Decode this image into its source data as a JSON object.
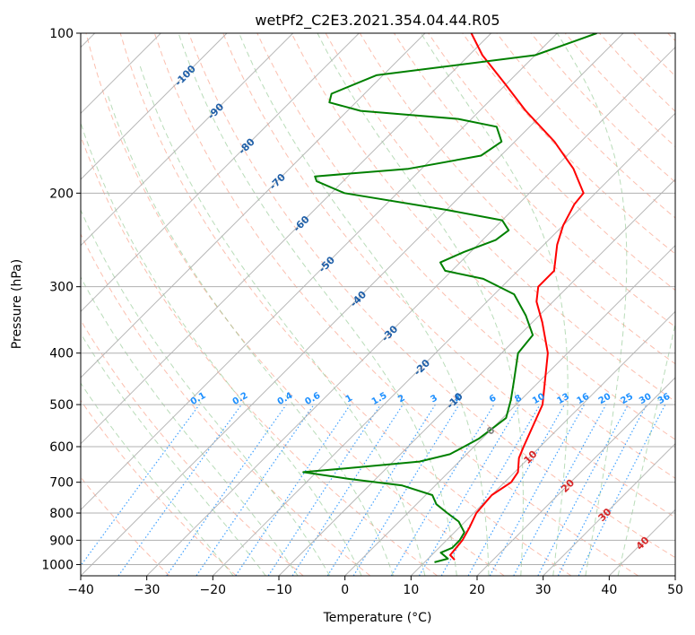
{
  "chart_data": {
    "type": "line",
    "chart_kind": "skew-T log-P diagram",
    "title": "wetPf2_C2E3.2021.354.04.44.R05",
    "xlabel": "Temperature (°C)",
    "ylabel": "Pressure (hPa)",
    "xlim": [
      -40,
      50
    ],
    "ylim": [
      1050,
      100
    ],
    "y_scale": "log",
    "x_ticks": [
      -40,
      -30,
      -20,
      -10,
      0,
      10,
      20,
      30,
      40,
      50
    ],
    "x_tick_labels": [
      "−40",
      "−30",
      "−20",
      "−10",
      "0",
      "10",
      "20",
      "30",
      "40",
      "50"
    ],
    "y_ticks": [
      100,
      200,
      300,
      400,
      500,
      600,
      700,
      800,
      900,
      1000
    ],
    "y_tick_labels": [
      "100",
      "200",
      "300",
      "400",
      "500",
      "600",
      "700",
      "800",
      "900",
      "1000"
    ],
    "grid": true,
    "isotherms_skewed": true,
    "isotherm_labels": [
      {
        "value": -100,
        "label": "-100"
      },
      {
        "value": -90,
        "label": "-90"
      },
      {
        "value": -80,
        "label": "-80"
      },
      {
        "value": -70,
        "label": "-70"
      },
      {
        "value": -60,
        "label": "-60"
      },
      {
        "value": -50,
        "label": "-50"
      },
      {
        "value": -40,
        "label": "-40"
      },
      {
        "value": -30,
        "label": "-30"
      },
      {
        "value": -20,
        "label": "-20"
      },
      {
        "value": -10,
        "label": "-10"
      },
      {
        "value": 0,
        "label": "0"
      },
      {
        "value": 10,
        "label": "10"
      },
      {
        "value": 20,
        "label": "20"
      },
      {
        "value": 30,
        "label": "30"
      },
      {
        "value": 40,
        "label": "40"
      }
    ],
    "mixing_ratio_labels": [
      "0.1",
      "0.2",
      "0.4",
      "0.6",
      "1",
      "1.5",
      "2",
      "3",
      "4",
      "6",
      "8",
      "10",
      "13",
      "16",
      "20",
      "25",
      "30",
      "36"
    ],
    "mixing_ratio_values": [
      0.1,
      0.2,
      0.4,
      0.6,
      1,
      1.5,
      2,
      3,
      4,
      6,
      8,
      10,
      13,
      16,
      20,
      25,
      30,
      36
    ],
    "colors": {
      "temperature": "#ff0000",
      "dewpoint": "#008000",
      "isotherm_neg_label": "#1f5fa8",
      "isotherm_pos_label": "#d62728",
      "isotherm_zero_label": "#808080",
      "mixing_ratio": "#1e90ff",
      "dry_adiabat": "#fa8060",
      "moist_adiabat": "#7fbf7f",
      "grid": "#b0b0b0"
    },
    "series": [
      {
        "name": "Temperature",
        "points": [
          {
            "p": 980,
            "t": 14.2
          },
          {
            "p": 960,
            "t": 12.8
          },
          {
            "p": 900,
            "t": 12.4
          },
          {
            "p": 850,
            "t": 11.5
          },
          {
            "p": 800,
            "t": 10.4
          },
          {
            "p": 740,
            "t": 10.0
          },
          {
            "p": 700,
            "t": 11.0
          },
          {
            "p": 670,
            "t": 10.5
          },
          {
            "p": 630,
            "t": 8.5
          },
          {
            "p": 600,
            "t": 7.5
          },
          {
            "p": 500,
            "t": 4.0
          },
          {
            "p": 400,
            "t": -3.0
          },
          {
            "p": 350,
            "t": -8.5
          },
          {
            "p": 320,
            "t": -12.5
          },
          {
            "p": 300,
            "t": -14.5
          },
          {
            "p": 280,
            "t": -14.5
          },
          {
            "p": 250,
            "t": -18.0
          },
          {
            "p": 230,
            "t": -20.0
          },
          {
            "p": 210,
            "t": -21.5
          },
          {
            "p": 200,
            "t": -21.8
          },
          {
            "p": 180,
            "t": -27.0
          },
          {
            "p": 160,
            "t": -34.0
          },
          {
            "p": 140,
            "t": -43.0
          },
          {
            "p": 125,
            "t": -50.0
          },
          {
            "p": 110,
            "t": -58.0
          },
          {
            "p": 100,
            "t": -63.0
          }
        ]
      },
      {
        "name": "Dewpoint",
        "points": [
          {
            "p": 990,
            "t": 11.5
          },
          {
            "p": 975,
            "t": 13.0
          },
          {
            "p": 950,
            "t": 11.0
          },
          {
            "p": 930,
            "t": 12.0
          },
          {
            "p": 900,
            "t": 12.0
          },
          {
            "p": 870,
            "t": 11.5
          },
          {
            "p": 830,
            "t": 9.0
          },
          {
            "p": 800,
            "t": 6.0
          },
          {
            "p": 770,
            "t": 3.0
          },
          {
            "p": 740,
            "t": 1.0
          },
          {
            "p": 710,
            "t": -5.0
          },
          {
            "p": 690,
            "t": -14.0
          },
          {
            "p": 670,
            "t": -22.0
          },
          {
            "p": 655,
            "t": -14.0
          },
          {
            "p": 640,
            "t": -6.0
          },
          {
            "p": 620,
            "t": -2.5
          },
          {
            "p": 580,
            "t": -0.5
          },
          {
            "p": 530,
            "t": 0.5
          },
          {
            "p": 490,
            "t": -1.5
          },
          {
            "p": 450,
            "t": -4.0
          },
          {
            "p": 400,
            "t": -7.5
          },
          {
            "p": 370,
            "t": -8.0
          },
          {
            "p": 340,
            "t": -12.0
          },
          {
            "p": 310,
            "t": -17.0
          },
          {
            "p": 290,
            "t": -24.0
          },
          {
            "p": 280,
            "t": -31.0
          },
          {
            "p": 270,
            "t": -33.0
          },
          {
            "p": 258,
            "t": -31.0
          },
          {
            "p": 245,
            "t": -28.0
          },
          {
            "p": 235,
            "t": -27.5
          },
          {
            "p": 225,
            "t": -30.0
          },
          {
            "p": 215,
            "t": -40.0
          },
          {
            "p": 200,
            "t": -58.0
          },
          {
            "p": 190,
            "t": -64.0
          },
          {
            "p": 186,
            "t": -65.0
          },
          {
            "p": 180,
            "t": -52.0
          },
          {
            "p": 170,
            "t": -43.0
          },
          {
            "p": 160,
            "t": -42.0
          },
          {
            "p": 150,
            "t": -45.0
          },
          {
            "p": 145,
            "t": -52.0
          },
          {
            "p": 140,
            "t": -68.0
          },
          {
            "p": 135,
            "t": -74.0
          },
          {
            "p": 130,
            "t": -75.0
          },
          {
            "p": 120,
            "t": -71.0
          },
          {
            "p": 110,
            "t": -50.0
          },
          {
            "p": 100,
            "t": -44.0
          }
        ]
      }
    ]
  }
}
